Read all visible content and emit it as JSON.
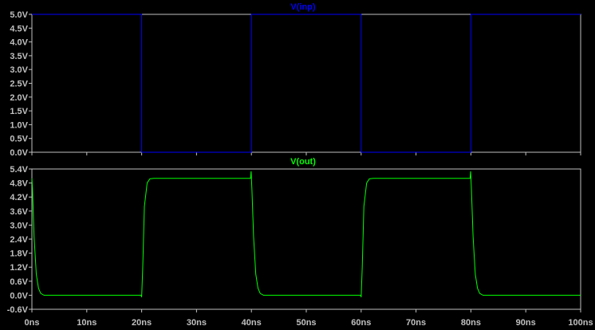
{
  "chart_data": [
    {
      "type": "line",
      "series": [
        {
          "name": "V(inp)",
          "color": "#0000ff",
          "x": [
            0,
            20,
            20,
            40,
            40,
            60,
            60,
            80,
            80,
            100
          ],
          "y": [
            5,
            5,
            0,
            0,
            5,
            5,
            0,
            0,
            5,
            5
          ]
        }
      ],
      "x_ticks": [
        "0ns",
        "10ns",
        "20ns",
        "30ns",
        "40ns",
        "50ns",
        "60ns",
        "70ns",
        "80ns",
        "90ns",
        "100ns"
      ],
      "y_ticks": [
        "0.0V",
        "0.5V",
        "1.0V",
        "1.5V",
        "2.0V",
        "2.5V",
        "3.0V",
        "3.5V",
        "4.0V",
        "4.5V",
        "5.0V"
      ],
      "xlim": [
        0,
        100
      ],
      "ylim": [
        0,
        5
      ]
    },
    {
      "type": "line",
      "series": [
        {
          "name": "V(out)",
          "color": "#00ff00",
          "x": [
            0,
            0.1,
            0.4,
            0.8,
            1.2,
            1.6,
            2.2,
            19.9,
            20.0,
            20.2,
            20.5,
            21.0,
            21.5,
            22.2,
            39.85,
            39.95,
            40.1,
            40.4,
            40.8,
            41.2,
            41.6,
            42.2,
            59.9,
            60.0,
            60.2,
            60.5,
            61.0,
            61.5,
            62.2,
            79.85,
            79.95,
            80.1,
            80.4,
            80.8,
            81.2,
            81.6,
            82.2,
            100
          ],
          "y": [
            5.0,
            4.6,
            2.5,
            0.9,
            0.3,
            0.08,
            0.0,
            0.0,
            -0.08,
            1.2,
            3.8,
            4.8,
            4.98,
            5.0,
            5.0,
            5.3,
            4.5,
            2.5,
            0.9,
            0.3,
            0.08,
            0.0,
            0.0,
            -0.08,
            1.2,
            3.8,
            4.8,
            4.98,
            5.0,
            5.0,
            5.3,
            4.5,
            2.5,
            0.9,
            0.3,
            0.08,
            0.0,
            0.0
          ]
        }
      ],
      "x_ticks": [
        "0ns",
        "10ns",
        "20ns",
        "30ns",
        "40ns",
        "50ns",
        "60ns",
        "70ns",
        "80ns",
        "90ns",
        "100ns"
      ],
      "y_ticks": [
        "-0.6V",
        "0.0V",
        "0.6V",
        "1.2V",
        "1.8V",
        "2.4V",
        "3.0V",
        "3.6V",
        "4.2V",
        "4.8V",
        "5.4V"
      ],
      "xlim": [
        0,
        100
      ],
      "ylim": [
        -0.6,
        5.4
      ]
    }
  ],
  "colors": {
    "background": "#000000",
    "frame": "#c0c0c0",
    "tick_text": "#c0c0c0"
  }
}
